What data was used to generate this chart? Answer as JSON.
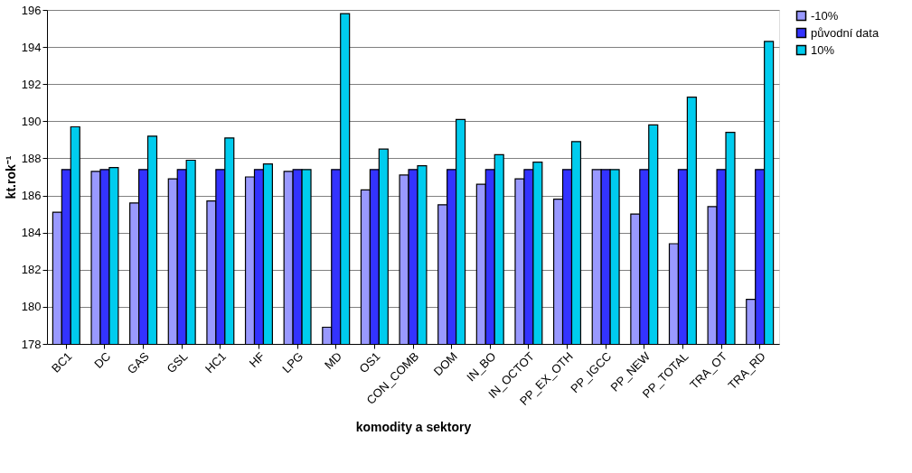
{
  "chart_data": {
    "type": "bar",
    "xlabel": "komodity a sektory",
    "ylabel": "kt.rok⁻¹",
    "categories": [
      "BC1",
      "DC",
      "GAS",
      "GSL",
      "HC1",
      "HF",
      "LPG",
      "MD",
      "OS1",
      "CON_COMB",
      "DOM",
      "IN_BO",
      "IN_OCTOT",
      "PP_EX_OTH",
      "PP_IGCC",
      "PP_NEW",
      "PP_TOTAL",
      "TRA_OT",
      "TRA_RD"
    ],
    "series": [
      {
        "name": "-10%",
        "color": "#9999ff",
        "values": [
          185.1,
          187.3,
          185.6,
          186.9,
          185.7,
          187.0,
          187.3,
          178.9,
          186.3,
          187.1,
          185.5,
          186.6,
          186.9,
          185.8,
          187.4,
          185.0,
          183.4,
          185.4,
          180.4
        ]
      },
      {
        "name": "původní data",
        "color": "#3333ff",
        "values": [
          187.4,
          187.4,
          187.4,
          187.4,
          187.4,
          187.4,
          187.4,
          187.4,
          187.4,
          187.4,
          187.4,
          187.4,
          187.4,
          187.4,
          187.4,
          187.4,
          187.4,
          187.4,
          187.4
        ]
      },
      {
        "name": "10%",
        "color": "#00ccee",
        "values": [
          189.7,
          187.5,
          189.2,
          187.9,
          189.1,
          187.7,
          187.4,
          195.8,
          188.5,
          187.6,
          190.1,
          188.2,
          187.8,
          188.9,
          187.4,
          189.8,
          191.3,
          189.4,
          194.3
        ]
      }
    ],
    "ylim": [
      178,
      196
    ],
    "yticks": [
      178,
      180,
      182,
      184,
      186,
      188,
      190,
      192,
      194,
      196
    ],
    "grid": "y",
    "legend": "right"
  }
}
